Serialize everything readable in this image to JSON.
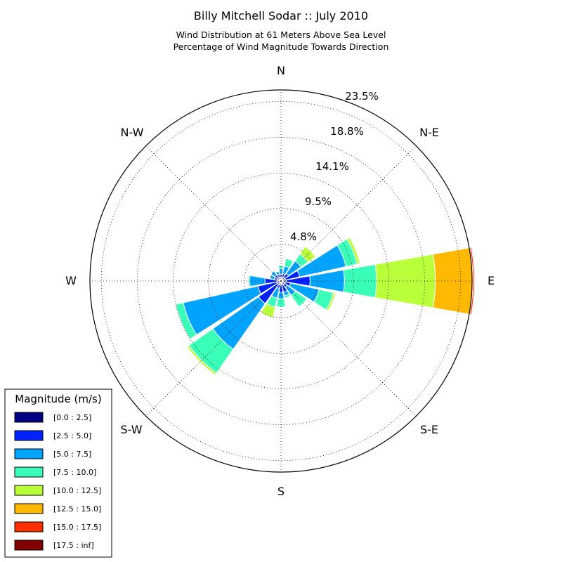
{
  "chart_data": {
    "type": "windrose",
    "title": "Billy Mitchell Sodar :: July 2010",
    "subtitle_lines": [
      "Wind Distribution at 61 Meters Above Sea Level",
      "Percentage of Wind Magnitude Towards Direction"
    ],
    "radial_max": 25,
    "radial_labels": [
      "4.8%",
      "9.5%",
      "14.1%",
      "18.8%",
      "23.5%"
    ],
    "radial_values": [
      4.8,
      9.5,
      14.1,
      18.8,
      23.5
    ],
    "directions": [
      "N",
      "N-E",
      "E",
      "S-E",
      "S",
      "S-W",
      "W",
      "N-W"
    ],
    "grid": true,
    "sector_count": 16,
    "sector_angles_deg": [
      0,
      22.5,
      45,
      67.5,
      90,
      112.5,
      135,
      157.5,
      180,
      202.5,
      225,
      247.5,
      270,
      292.5,
      315,
      337.5
    ],
    "legend": {
      "title": "Magnitude (m/s)",
      "placement": "bottom-left",
      "bins": [
        "[0.0 : 2.5]",
        "[2.5 : 5.0]",
        "[5.0 : 7.5]",
        "[7.5 : 10.0]",
        "[10.0 : 12.5]",
        "[12.5 : 15.0]",
        "[15.0 : 17.5]",
        "[17.5 : inf]"
      ],
      "colors": [
        "#000080",
        "#0022ff",
        "#00a4ff",
        "#3affb9",
        "#b9ff3a",
        "#ffb900",
        "#ff3000",
        "#800000"
      ]
    },
    "series_cumulative_percent": [
      [
        0.5,
        0.9,
        1.6,
        2.0
      ],
      [
        0.5,
        1.0,
        2.0,
        3.0
      ],
      [
        0.5,
        1.2,
        3.2,
        4.3,
        5.5
      ],
      [
        0.6,
        2.5,
        8.7,
        10.2,
        10.6
      ],
      [
        0.7,
        3.8,
        8.3,
        12.5,
        20.2,
        25.1,
        25.3,
        25.4
      ],
      [
        0.6,
        1.3,
        5.1,
        7.0,
        7.3
      ],
      [
        0.5,
        1.0,
        2.3,
        4.1
      ],
      [
        0.5,
        1.5,
        2.0,
        2.3
      ],
      [
        0.5,
        1.5,
        2.3,
        3.4
      ],
      [
        0.5,
        1.0,
        2.3,
        3.5,
        4.9
      ],
      [
        0.5,
        3.6,
        10.9,
        14.7,
        15.0
      ],
      [
        0.6,
        3.1,
        13.1,
        14.1
      ],
      [
        0.5,
        2.1,
        4.1,
        4.3
      ],
      [
        0.5,
        0.9,
        1.5
      ],
      [
        0.5,
        1.0,
        1.6
      ],
      [
        0.5,
        0.9,
        1.3
      ]
    ]
  }
}
